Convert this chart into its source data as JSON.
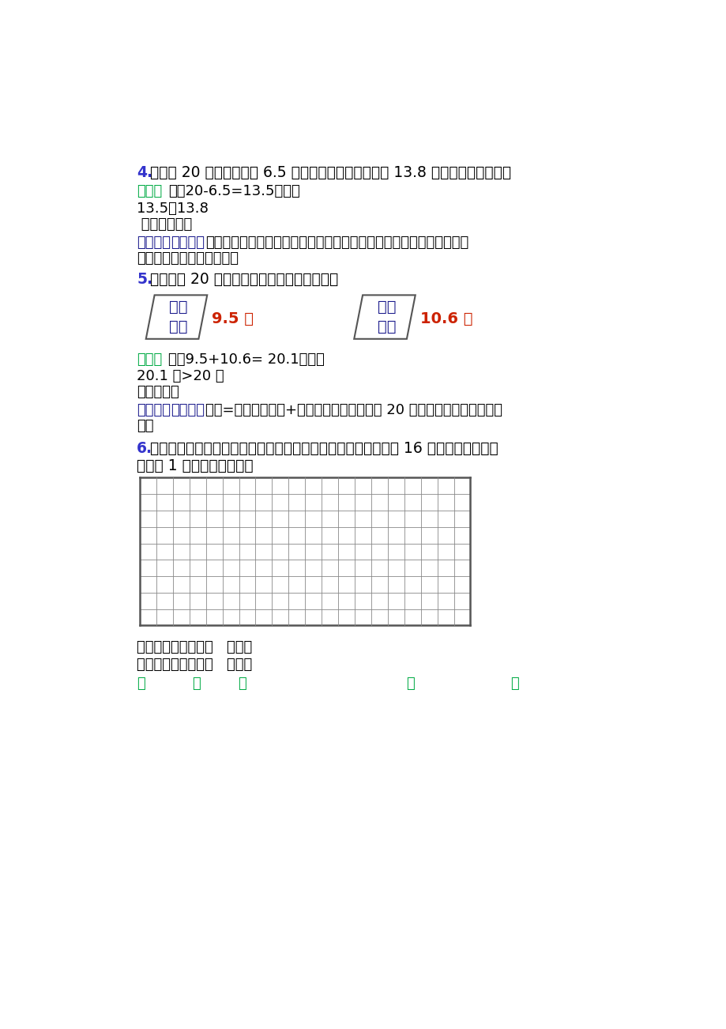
{
  "bg_color": "#ffffff",
  "text_color_black": "#000000",
  "text_color_blue": "#3333cc",
  "text_color_green": "#00aa44",
  "text_color_dark_blue": "#1a1a8c",
  "text_color_red": "#cc2200",
  "q4_number": "4.",
  "q4_text": "李明带 20 元錢买了一支 6.5 元的钓笔，他还想买一盒 13.8 元的彩笔，錢够吗？",
  "q4_jiexi_label": "解析：",
  "q4_jiexi_text": "解：20-6.5=13.5（元）",
  "q4_compare": "13.5＜13.8",
  "q4_answer": " 答：錢不够。",
  "q4_analysis_bracket": "【解析】",
  "q4_analysis_bracket2": "【分析】",
  "q4_analysis_text": "用带的錢数减去一支钓笔的錢数求出剩下的錢数，然后与一盒彩笔的錢",
  "q4_analysis_text2": "数比较后判断够不够即可。",
  "q5_number": "5.",
  "q5_text": "小红带了 20 元錢，想买这两本书，錢够吗？",
  "book1_line1": "海洋",
  "book1_line2": "动物",
  "book1_price": "9.5 元",
  "book2_line1": "趣味",
  "book2_line2": "数学",
  "book2_price": "10.6 元",
  "q5_jiexi_label": "解析：",
  "q5_jiexi_text": "解：9.5+10.6= 20.1（元）",
  "q5_compare": "20.1 元>20 元",
  "q5_answer": "答：不够。",
  "q5_analysis_bracket": "【解析】",
  "q5_analysis_bracket2": "【分析】",
  "q5_analysis_text": "总价=海洋动物单价+趣味数学单价，然后用 20 元与总价进行大小比较即",
  "q5_analysis_text2": "可。",
  "q6_number": "6.",
  "q6_text": "在下面的方格中画一个正方形和一个长方形，使它们的面积都是 16 平方厘米。（每格",
  "q6_text2": "是边长 1 厘米的小正方形）",
  "grid_cols": 20,
  "grid_rows": 9,
  "perimeter_sq": "正方形的周长是：（   ）厘米",
  "perimeter_rect": "长方形的周长是：（   ）厘米",
  "bottom_jiexi": "解",
  "bottom_xi": "析",
  "bottom_colon": "：",
  "bottom_jie": "解",
  "bottom_colon2": "："
}
